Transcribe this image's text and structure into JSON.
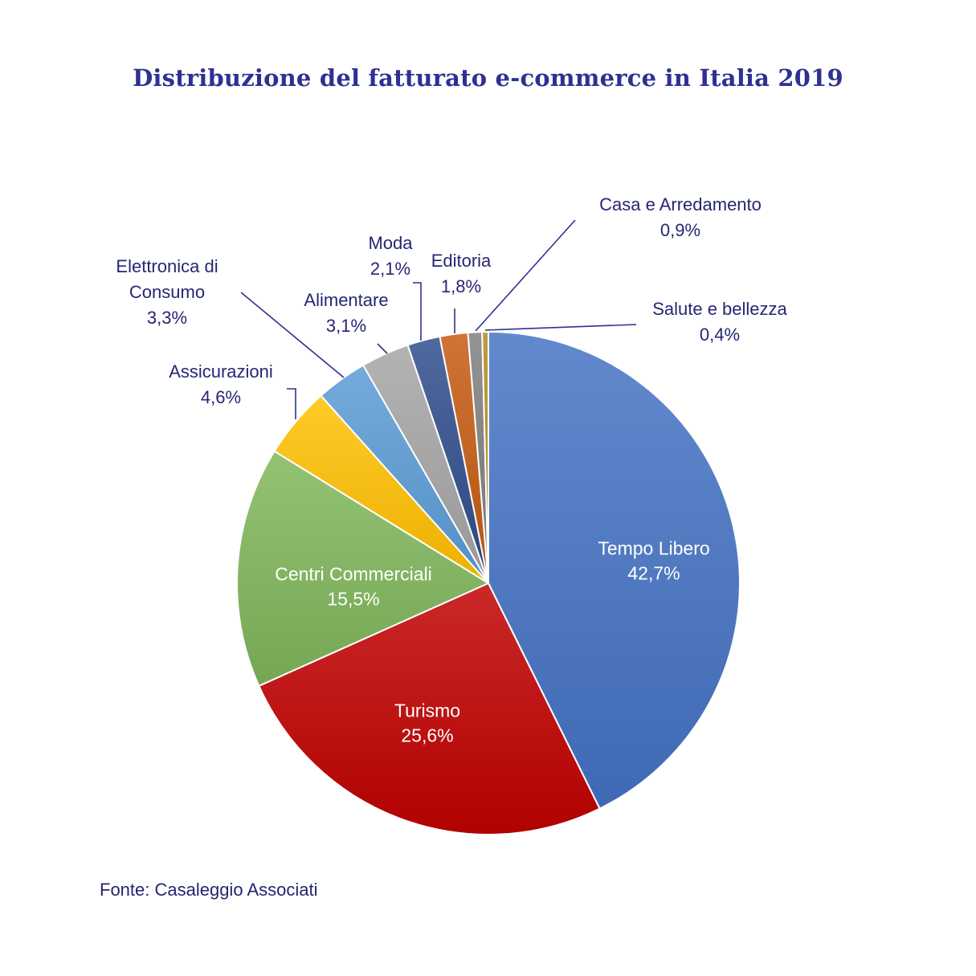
{
  "chart_data": {
    "type": "pie",
    "title": "Distribuzione del fatturato e-commerce  in Italia 2019",
    "source": "Fonte: Casaleggio Associati",
    "slices": [
      {
        "key": "tempo-libero",
        "label": "Tempo Libero",
        "value": 42.7,
        "value_label": "42,7%",
        "color": "#4472c4"
      },
      {
        "key": "turismo",
        "label": "Turismo",
        "value": 25.6,
        "value_label": "25,6%",
        "color": "#c00000"
      },
      {
        "key": "centri-commerciali",
        "label": "Centri Commerciali",
        "value": 15.5,
        "value_label": "15,5%",
        "color": "#7fb65a"
      },
      {
        "key": "assicurazioni",
        "label": "Assicurazioni",
        "value": 4.6,
        "value_label": "4,6%",
        "color": "#ffc000"
      },
      {
        "key": "elettronica-di-consumo",
        "label": "Elettronica di Consumo",
        "label_lines": [
          "Elettronica di",
          "Consumo"
        ],
        "value": 3.3,
        "value_label": "3,3%",
        "color": "#5b9bd5"
      },
      {
        "key": "alimentare",
        "label": "Alimentare",
        "value": 3.1,
        "value_label": "3,1%",
        "color": "#a5a5a5"
      },
      {
        "key": "moda",
        "label": "Moda",
        "value": 2.1,
        "value_label": "2,1%",
        "color": "#2f4d8c"
      },
      {
        "key": "editoria",
        "label": "Editoria",
        "value": 1.8,
        "value_label": "1,8%",
        "color": "#c55a11"
      },
      {
        "key": "casa-e-arredamento",
        "label": "Casa e Arredamento",
        "value": 0.9,
        "value_label": "0,9%",
        "color": "#7f7f7f"
      },
      {
        "key": "salute-e-bellezza",
        "label": "Salute e bellezza",
        "value": 0.4,
        "value_label": "0,4%",
        "color": "#b38a1c"
      }
    ]
  }
}
